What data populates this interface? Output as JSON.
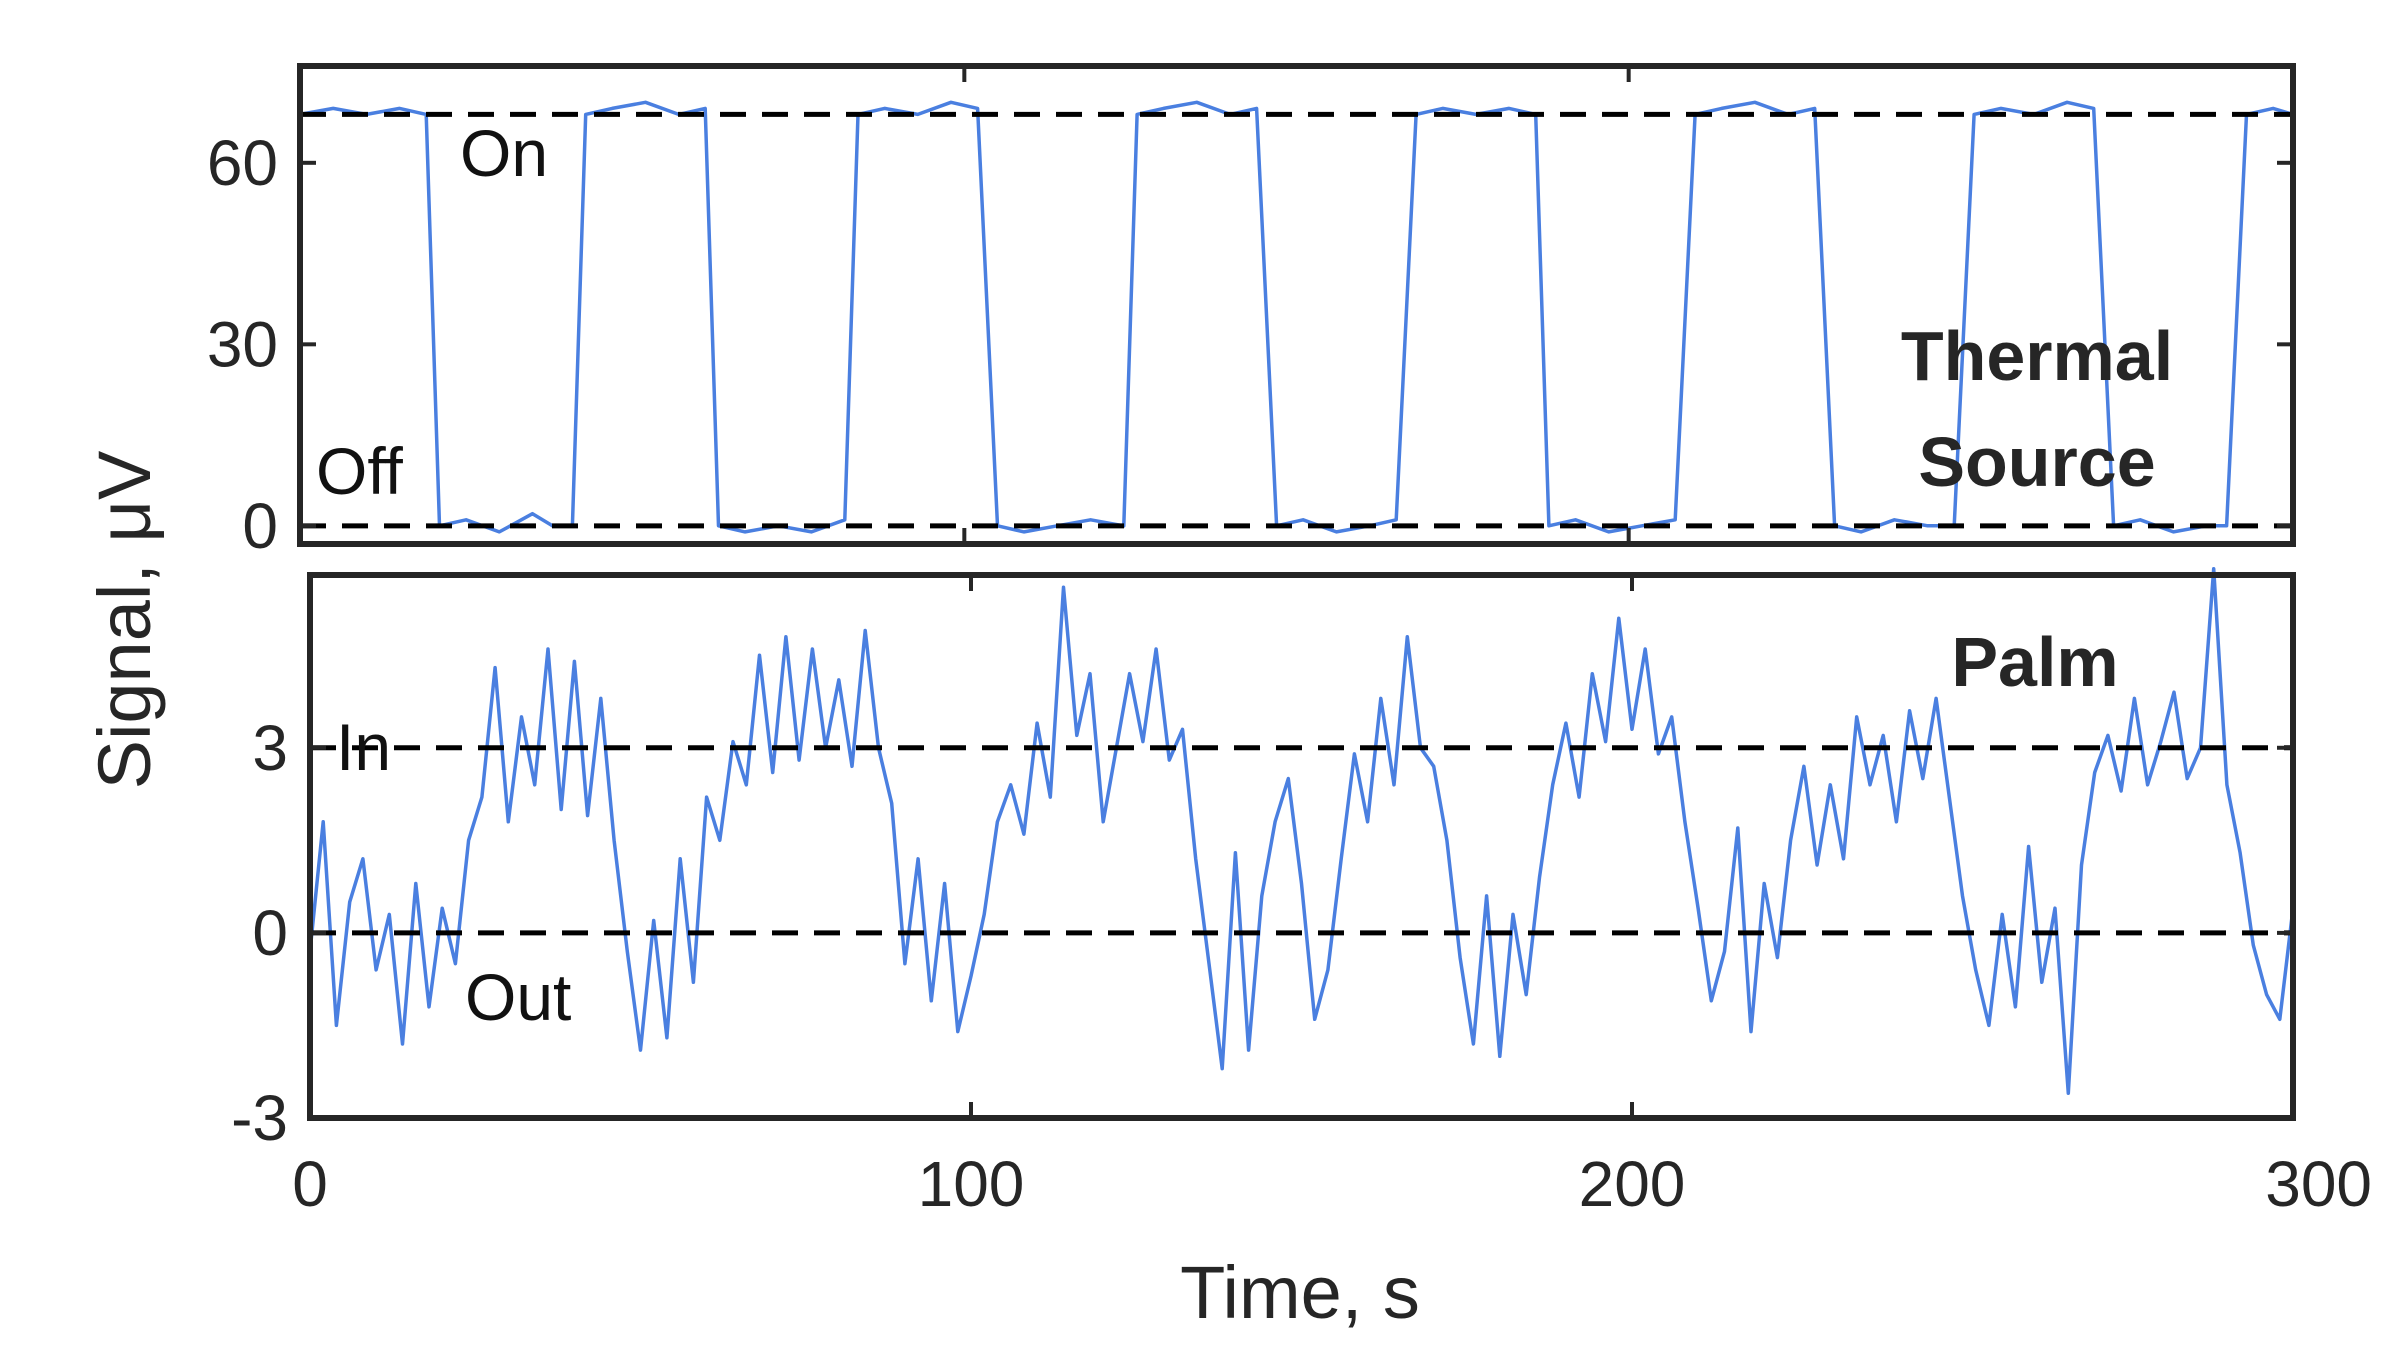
{
  "chart_data": [
    {
      "type": "line",
      "panel": "top",
      "annotation": "Thermal Source",
      "annotation_lines": [
        "Thermal",
        "Source"
      ],
      "xlim": [
        0,
        300
      ],
      "ylim": [
        -3,
        76
      ],
      "yticks": [
        0,
        30,
        60
      ],
      "ytick_labels": [
        "0",
        "30",
        "60"
      ],
      "grid": false,
      "color": "#4a7fe0",
      "reference_lines": [
        {
          "label": "On",
          "y": 68
        },
        {
          "label": "Off",
          "y": 0
        }
      ],
      "x": [
        0,
        5,
        10,
        15,
        19,
        21,
        25,
        30,
        35,
        38,
        41,
        43,
        47,
        52,
        57,
        61,
        63,
        67,
        72,
        77,
        82,
        84,
        88,
        93,
        98,
        102,
        105,
        109,
        114,
        119,
        124,
        126,
        130,
        135,
        140,
        144,
        147,
        151,
        156,
        161,
        165,
        168,
        172,
        177,
        182,
        186,
        188,
        192,
        197,
        202,
        207,
        210,
        214,
        219,
        224,
        228,
        231,
        235,
        240,
        245,
        249,
        252,
        256,
        261,
        266,
        270,
        273,
        277,
        282,
        287,
        290,
        293,
        297,
        300
      ],
      "y": [
        68,
        69,
        68,
        69,
        68,
        0,
        1,
        -1,
        2,
        0,
        0,
        68,
        69,
        70,
        68,
        69,
        0,
        -1,
        0,
        -1,
        1,
        68,
        69,
        68,
        70,
        69,
        0,
        -1,
        0,
        1,
        0,
        68,
        69,
        70,
        68,
        69,
        0,
        1,
        -1,
        0,
        1,
        68,
        69,
        68,
        69,
        68,
        0,
        1,
        -1,
        0,
        1,
        68,
        69,
        70,
        68,
        69,
        0,
        -1,
        1,
        0,
        0,
        68,
        69,
        68,
        70,
        69,
        0,
        1,
        -1,
        0,
        0,
        68,
        69,
        68
      ]
    },
    {
      "type": "line",
      "panel": "bottom",
      "annotation": "Palm",
      "xlim": [
        0,
        300
      ],
      "ylim": [
        -3,
        5.8
      ],
      "xlabel": "Time, s",
      "xticks": [
        0,
        100,
        200,
        300
      ],
      "xtick_labels": [
        "0",
        "100",
        "200",
        "300"
      ],
      "yticks": [
        -3,
        0,
        3
      ],
      "ytick_labels": [
        "-3",
        "0",
        "3"
      ],
      "grid": false,
      "color": "#4a7fe0",
      "reference_lines": [
        {
          "label": "In",
          "y": 3
        },
        {
          "label": "Out",
          "y": 0
        }
      ],
      "x": [
        0,
        2,
        4,
        6,
        8,
        10,
        12,
        14,
        16,
        18,
        20,
        22,
        24,
        26,
        28,
        30,
        32,
        34,
        36,
        38,
        40,
        42,
        44,
        46,
        48,
        50,
        52,
        54,
        56,
        58,
        60,
        62,
        64,
        66,
        68,
        70,
        72,
        74,
        76,
        78,
        80,
        82,
        84,
        86,
        88,
        90,
        92,
        94,
        96,
        98,
        100,
        102,
        104,
        106,
        108,
        110,
        112,
        114,
        116,
        118,
        120,
        122,
        124,
        126,
        128,
        130,
        132,
        134,
        136,
        138,
        140,
        142,
        144,
        146,
        148,
        150,
        152,
        154,
        156,
        158,
        160,
        162,
        164,
        166,
        168,
        170,
        172,
        174,
        176,
        178,
        180,
        182,
        184,
        186,
        188,
        190,
        192,
        194,
        196,
        198,
        200,
        202,
        204,
        206,
        208,
        210,
        212,
        214,
        216,
        218,
        220,
        222,
        224,
        226,
        228,
        230,
        232,
        234,
        236,
        238,
        240,
        242,
        244,
        246,
        248,
        250,
        252,
        254,
        256,
        258,
        260,
        262,
        264,
        266,
        268,
        270,
        272,
        274,
        276,
        278,
        280,
        282,
        284,
        286,
        288,
        290,
        292,
        294,
        296,
        298,
        300
      ],
      "y": [
        -0.3,
        1.8,
        -1.5,
        0.5,
        1.2,
        -0.6,
        0.3,
        -1.8,
        0.8,
        -1.2,
        0.4,
        -0.5,
        1.5,
        2.2,
        4.3,
        1.8,
        3.5,
        2.4,
        4.6,
        2.0,
        4.4,
        1.9,
        3.8,
        1.5,
        -0.3,
        -1.9,
        0.2,
        -1.7,
        1.2,
        -0.8,
        2.2,
        1.5,
        3.1,
        2.4,
        4.5,
        2.6,
        4.8,
        2.8,
        4.6,
        3.0,
        4.1,
        2.7,
        4.9,
        3.0,
        2.1,
        -0.5,
        1.2,
        -1.1,
        0.8,
        -1.6,
        -0.7,
        0.3,
        1.8,
        2.4,
        1.6,
        3.4,
        2.2,
        5.6,
        3.2,
        4.2,
        1.8,
        3.0,
        4.2,
        3.1,
        4.6,
        2.8,
        3.3,
        1.2,
        -0.5,
        -2.2,
        1.3,
        -1.9,
        0.6,
        1.8,
        2.5,
        0.8,
        -1.4,
        -0.6,
        1.2,
        2.9,
        1.8,
        3.8,
        2.4,
        4.8,
        3.0,
        2.7,
        1.5,
        -0.4,
        -1.8,
        0.6,
        -2.0,
        0.3,
        -1.0,
        0.9,
        2.4,
        3.4,
        2.2,
        4.2,
        3.1,
        5.1,
        3.3,
        4.6,
        2.9,
        3.5,
        1.8,
        0.4,
        -1.1,
        -0.3,
        1.7,
        -1.6,
        0.8,
        -0.4,
        1.5,
        2.7,
        1.1,
        2.4,
        1.2,
        3.5,
        2.4,
        3.2,
        1.8,
        3.6,
        2.5,
        3.8,
        2.2,
        0.6,
        -0.6,
        -1.5,
        0.3,
        -1.2,
        1.4,
        -0.8,
        0.4,
        -2.6,
        1.1,
        2.6,
        3.2,
        2.3,
        3.8,
        2.4,
        3.1,
        3.9,
        2.5,
        3.0,
        5.9,
        2.4,
        1.3,
        -0.2,
        -1.0,
        -1.4,
        0.4
      ]
    }
  ],
  "shared_ylabel": "Signal, μV"
}
